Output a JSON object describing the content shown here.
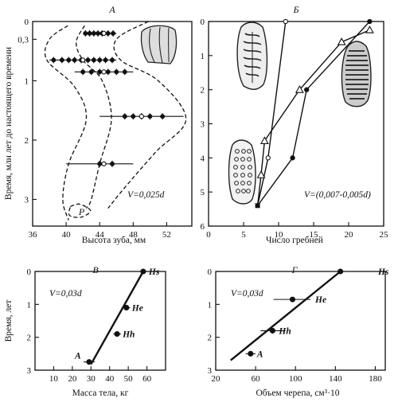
{
  "chart_data": [
    {
      "panel": "A",
      "type": "scatter",
      "title": "А",
      "xlabel": "Высота зуба, мм",
      "ylabel": "Время, млн лет до настоящего времени",
      "xlim": [
        36,
        55
      ],
      "ylim": [
        3.45,
        0
      ],
      "xticks": [
        36,
        40,
        44,
        48,
        52
      ],
      "xtick_labels": [
        "36",
        "40",
        "44",
        "48",
        "52"
      ],
      "yticks": [
        0,
        0.3,
        1,
        2,
        3
      ],
      "ytick_labels": [
        "0",
        "0,3",
        "1",
        "2",
        "3"
      ],
      "equation": "V=0,025d",
      "annotation": "P",
      "series": [
        {
          "t": 0.2,
          "points": [
            42.3,
            42.8,
            43.3,
            43.8,
            44.3,
            45.0,
            45.6
          ],
          "mean": 44.5,
          "range": [
            42.0,
            46.0
          ]
        },
        {
          "t": 0.65,
          "points": [
            38.5,
            39.5,
            40.3,
            41.0,
            41.8,
            42.6,
            43.3,
            44.0,
            44.7,
            45.5
          ],
          "mean": 42.0,
          "range": [
            38.0,
            46.0
          ]
        },
        {
          "t": 0.85,
          "points": [
            42.0,
            43.0,
            44.0,
            45.0,
            46.0,
            47.0
          ],
          "mean": 44.5,
          "range": [
            41.0,
            48.0
          ]
        },
        {
          "t": 1.6,
          "points": [
            47.0,
            48.0,
            49.0,
            50.0,
            51.5
          ],
          "mean": 49.0,
          "range": [
            44.0,
            54.0
          ]
        },
        {
          "t": 2.4,
          "points": [
            44.0,
            45.5
          ],
          "mean": 44.5,
          "range": [
            40.0,
            48.0
          ]
        }
      ],
      "envelopes": [
        {
          "name": "left",
          "points": [
            [
              40.2,
              0.07
            ],
            [
              38.0,
              0.3
            ],
            [
              37.7,
              0.65
            ],
            [
              41.0,
              1.1
            ],
            [
              42.4,
              1.65
            ],
            [
              40.3,
              2.4
            ],
            [
              39.6,
              3.0
            ],
            [
              40.3,
              3.35
            ]
          ]
        },
        {
          "name": "middle",
          "points": [
            [
              42.2,
              0.07
            ],
            [
              41.2,
              0.35
            ],
            [
              42.0,
              0.65
            ],
            [
              44.3,
              1.0
            ],
            [
              45.4,
              1.65
            ],
            [
              44.0,
              2.4
            ],
            [
              43.0,
              3.0
            ],
            [
              42.4,
              3.15
            ]
          ]
        },
        {
          "name": "right",
          "points": [
            [
              49.8,
              0.0
            ],
            [
              46.0,
              0.3
            ],
            [
              46.5,
              0.65
            ],
            [
              51.0,
              1.0
            ],
            [
              54.3,
              1.65
            ],
            [
              50.7,
              2.2
            ],
            [
              47.0,
              2.8
            ],
            [
              45.0,
              3.15
            ]
          ]
        },
        {
          "name": "P-loop",
          "points": [
            [
              40.5,
              3.12
            ],
            [
              41.6,
              3.08
            ],
            [
              42.9,
              3.19
            ],
            [
              41.8,
              3.3
            ],
            [
              40.4,
              3.27
            ],
            [
              40.5,
              3.12
            ]
          ]
        }
      ]
    },
    {
      "panel": "Б",
      "type": "line",
      "title": "Б",
      "xlabel": "Число гребней",
      "xlim": [
        0,
        25
      ],
      "ylim": [
        6,
        0
      ],
      "xticks": [
        0,
        5,
        10,
        15,
        20,
        25
      ],
      "xtick_labels": [
        "0",
        "5",
        "10",
        "15",
        "20",
        "25"
      ],
      "yticks": [
        0,
        1,
        2,
        3,
        4,
        5,
        6
      ],
      "ytick_labels": [
        "0",
        "1",
        "2",
        "3",
        "4",
        "5",
        "6"
      ],
      "equation": "V=(0,007-0,005d)",
      "series": [
        {
          "marker": "open-circle",
          "points": [
            [
              11.0,
              0.0
            ],
            [
              8.5,
              4.0
            ],
            [
              7.0,
              5.4
            ]
          ]
        },
        {
          "marker": "filled-circle",
          "points": [
            [
              23.0,
              0.0
            ],
            [
              14.0,
              2.0
            ],
            [
              12.0,
              4.0
            ],
            [
              7.0,
              5.4
            ]
          ]
        },
        {
          "marker": "triangle",
          "points": [
            [
              23.0,
              0.25
            ],
            [
              19.0,
              0.6
            ],
            [
              13.0,
              2.0
            ],
            [
              8.0,
              3.5
            ],
            [
              7.5,
              4.5
            ],
            [
              7.0,
              5.4
            ]
          ]
        }
      ]
    },
    {
      "panel": "В",
      "type": "scatter",
      "title": "В",
      "xlabel": "Масса тела, кг",
      "ylabel": "Время, лет",
      "xlim": [
        0,
        70
      ],
      "ylim": [
        3,
        0
      ],
      "xticks": [
        10,
        20,
        30,
        40,
        50,
        60
      ],
      "xtick_labels": [
        "10",
        "20",
        "30",
        "40",
        "50",
        "60"
      ],
      "yticks": [
        0,
        1,
        2,
        3
      ],
      "ytick_labels": [
        "0",
        "1",
        "2",
        "3"
      ],
      "equation": "V=0,03d",
      "regression": [
        [
          30,
          2.82
        ],
        [
          58,
          0.0
        ]
      ],
      "points": [
        {
          "label": "Hs",
          "x": 58,
          "y": 0.0,
          "err": [
            56,
            60
          ]
        },
        {
          "label": "He",
          "x": 49,
          "y": 1.1,
          "err": [
            47,
            51
          ]
        },
        {
          "label": "Hh",
          "x": 44,
          "y": 1.9,
          "err": [
            42,
            46
          ]
        },
        {
          "label": "A",
          "x": 29,
          "y": 2.75,
          "err": [
            26,
            32
          ]
        }
      ]
    },
    {
      "panel": "Г",
      "type": "scatter",
      "title": "Г",
      "xlabel": "Объем черепа, см³·10",
      "xlim": [
        20,
        190
      ],
      "ylim": [
        3,
        0
      ],
      "xticks": [
        20,
        60,
        100,
        140,
        180
      ],
      "xtick_labels": [
        "20",
        "60",
        "100",
        "140",
        "180"
      ],
      "yticks": [
        0,
        1,
        2,
        3
      ],
      "ytick_labels": [
        "0",
        "1",
        "2",
        "3"
      ],
      "equation": "V=0,03d",
      "regression": [
        [
          35,
          2.7
        ],
        [
          145,
          0.0
        ]
      ],
      "points": [
        {
          "label": "Hs",
          "x": 145,
          "y": 0.0,
          "err": [
            108,
            178
          ]
        },
        {
          "label": "He",
          "x": 97,
          "y": 0.85,
          "err": [
            78,
            115
          ]
        },
        {
          "label": "Hh",
          "x": 77,
          "y": 1.8,
          "err": [
            65,
            90
          ]
        },
        {
          "label": "A",
          "x": 55,
          "y": 2.5,
          "err": [
            50,
            60
          ]
        }
      ]
    }
  ]
}
